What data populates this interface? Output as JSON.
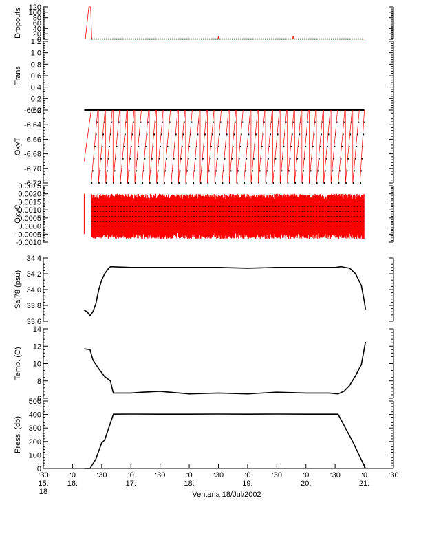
{
  "xaxis": {
    "label": "Ventana 18/Jul/2002",
    "range": [
      15.5,
      21.5
    ],
    "ticks": [
      {
        "x": 15.5,
        "l1": ":30",
        "l2": "15:",
        "l3": "18"
      },
      {
        "x": 16.0,
        "l1": ":0",
        "l2": "16:",
        "l3": ""
      },
      {
        "x": 16.5,
        "l1": ":30",
        "l2": "",
        "l3": ""
      },
      {
        "x": 17.0,
        "l1": ":0",
        "l2": "17:",
        "l3": ""
      },
      {
        "x": 17.5,
        "l1": ":30",
        "l2": "",
        "l3": ""
      },
      {
        "x": 18.0,
        "l1": ":0",
        "l2": "18:",
        "l3": ""
      },
      {
        "x": 18.5,
        "l1": ":30",
        "l2": "",
        "l3": ""
      },
      {
        "x": 19.0,
        "l1": ":0",
        "l2": "19:",
        "l3": ""
      },
      {
        "x": 19.5,
        "l1": ":30",
        "l2": "",
        "l3": ""
      },
      {
        "x": 20.0,
        "l1": ":0",
        "l2": "20:",
        "l3": ""
      },
      {
        "x": 20.5,
        "l1": ":30",
        "l2": "",
        "l3": ""
      },
      {
        "x": 21.0,
        "l1": ":0",
        "l2": "21:",
        "l3": ""
      },
      {
        "x": 21.5,
        "l1": ":30",
        "l2": "",
        "l3": ""
      }
    ]
  },
  "colors": {
    "trace": "#ff0000",
    "markers": "#000000"
  },
  "chart_data": [
    {
      "type": "line",
      "ylabel": "Dropouts",
      "ylim": [
        0,
        120
      ],
      "ticks": [
        "0",
        "20",
        "40",
        "60",
        "80",
        "100",
        "120"
      ],
      "series": [
        {
          "x": [
            16.22,
            16.28,
            16.31,
            16.33,
            18.49,
            18.5,
            18.51,
            19.77,
            19.78,
            19.79,
            21.0
          ],
          "values": [
            1,
            120,
            120,
            1,
            1,
            10,
            1,
            1,
            12,
            1,
            1
          ]
        }
      ]
    },
    {
      "type": "line",
      "ylabel": "Trans",
      "ylim": [
        0,
        1.2
      ],
      "ticks": [
        "0.0",
        "0.2",
        "0.4",
        "0.6",
        "0.8",
        "1.0",
        "1.2"
      ],
      "series": [
        {
          "x": [
            16.2,
            21.0
          ],
          "values": [
            0.0,
            0.0
          ]
        }
      ]
    },
    {
      "type": "line",
      "ylabel": "OxyT",
      "ylim": [
        -6.72,
        -6.62
      ],
      "ticks": [
        "-6.72",
        "-6.70",
        "-6.68",
        "-6.66",
        "-6.64",
        "-6.62"
      ],
      "series": [
        {
          "x": [
            16.2,
            16.32
          ],
          "values": [
            -6.69,
            -6.62
          ]
        }
      ]
    },
    {
      "type": "line",
      "ylabel": "OxyC",
      "ylim": [
        -0.001,
        0.0025
      ],
      "ticks": [
        "-0.0010",
        "-0.0005",
        "0.0000",
        "0.0005",
        "0.0010",
        "0.0015",
        "0.0020",
        "0.0025"
      ],
      "series": [
        {
          "x": [
            16.2,
            21.0
          ],
          "values": [
            0.0005,
            0.0005
          ]
        }
      ]
    },
    {
      "type": "line",
      "ylabel": "Sal78 (psu)",
      "ylim": [
        33.6,
        34.4
      ],
      "ticks": [
        "33.6",
        "33.8",
        "34.0",
        "34.2",
        "34.4"
      ],
      "series": [
        {
          "x": [
            16.2,
            16.25,
            16.3,
            16.35,
            16.4,
            16.45,
            16.5,
            16.55,
            16.62,
            16.65,
            17.0,
            17.5,
            18.0,
            18.5,
            19.0,
            19.5,
            20.0,
            20.5,
            20.6,
            20.75,
            20.85,
            20.95,
            21.0,
            21.02
          ],
          "values": [
            33.74,
            33.72,
            33.67,
            33.72,
            33.82,
            34.0,
            34.12,
            34.2,
            34.27,
            34.29,
            34.28,
            34.28,
            34.28,
            34.28,
            34.27,
            34.28,
            34.28,
            34.28,
            34.29,
            34.27,
            34.2,
            34.05,
            33.85,
            33.75
          ]
        }
      ]
    },
    {
      "type": "line",
      "ylabel": "Temp. (C)",
      "ylim": [
        6,
        14
      ],
      "ticks": [
        "6",
        "8",
        "10",
        "12",
        "14"
      ],
      "series": [
        {
          "x": [
            16.2,
            16.3,
            16.35,
            16.45,
            16.55,
            16.65,
            16.68,
            16.7,
            17.0,
            17.2,
            17.5,
            18.0,
            18.5,
            19.0,
            19.5,
            20.0,
            20.4,
            20.55,
            20.65,
            20.75,
            20.85,
            20.95,
            21.02
          ],
          "values": [
            11.7,
            11.6,
            10.4,
            9.4,
            8.5,
            8.0,
            7.1,
            6.6,
            6.6,
            6.7,
            6.8,
            6.5,
            6.6,
            6.5,
            6.7,
            6.6,
            6.6,
            6.5,
            6.8,
            7.5,
            8.6,
            9.9,
            12.5
          ]
        }
      ]
    },
    {
      "type": "line",
      "ylabel": "Press. (db)",
      "ylim": [
        0,
        500
      ],
      "ticks": [
        "0",
        "100",
        "200",
        "300",
        "400",
        "500"
      ],
      "series": [
        {
          "x": [
            16.2,
            16.3,
            16.4,
            16.5,
            16.55,
            16.7,
            17.0,
            17.5,
            18.0,
            18.5,
            19.0,
            19.5,
            20.0,
            20.55,
            20.8,
            21.02
          ],
          "values": [
            0,
            0,
            70,
            190,
            210,
            402,
            403,
            402,
            402,
            403,
            402,
            403,
            402,
            402,
            200,
            0
          ]
        }
      ]
    }
  ]
}
